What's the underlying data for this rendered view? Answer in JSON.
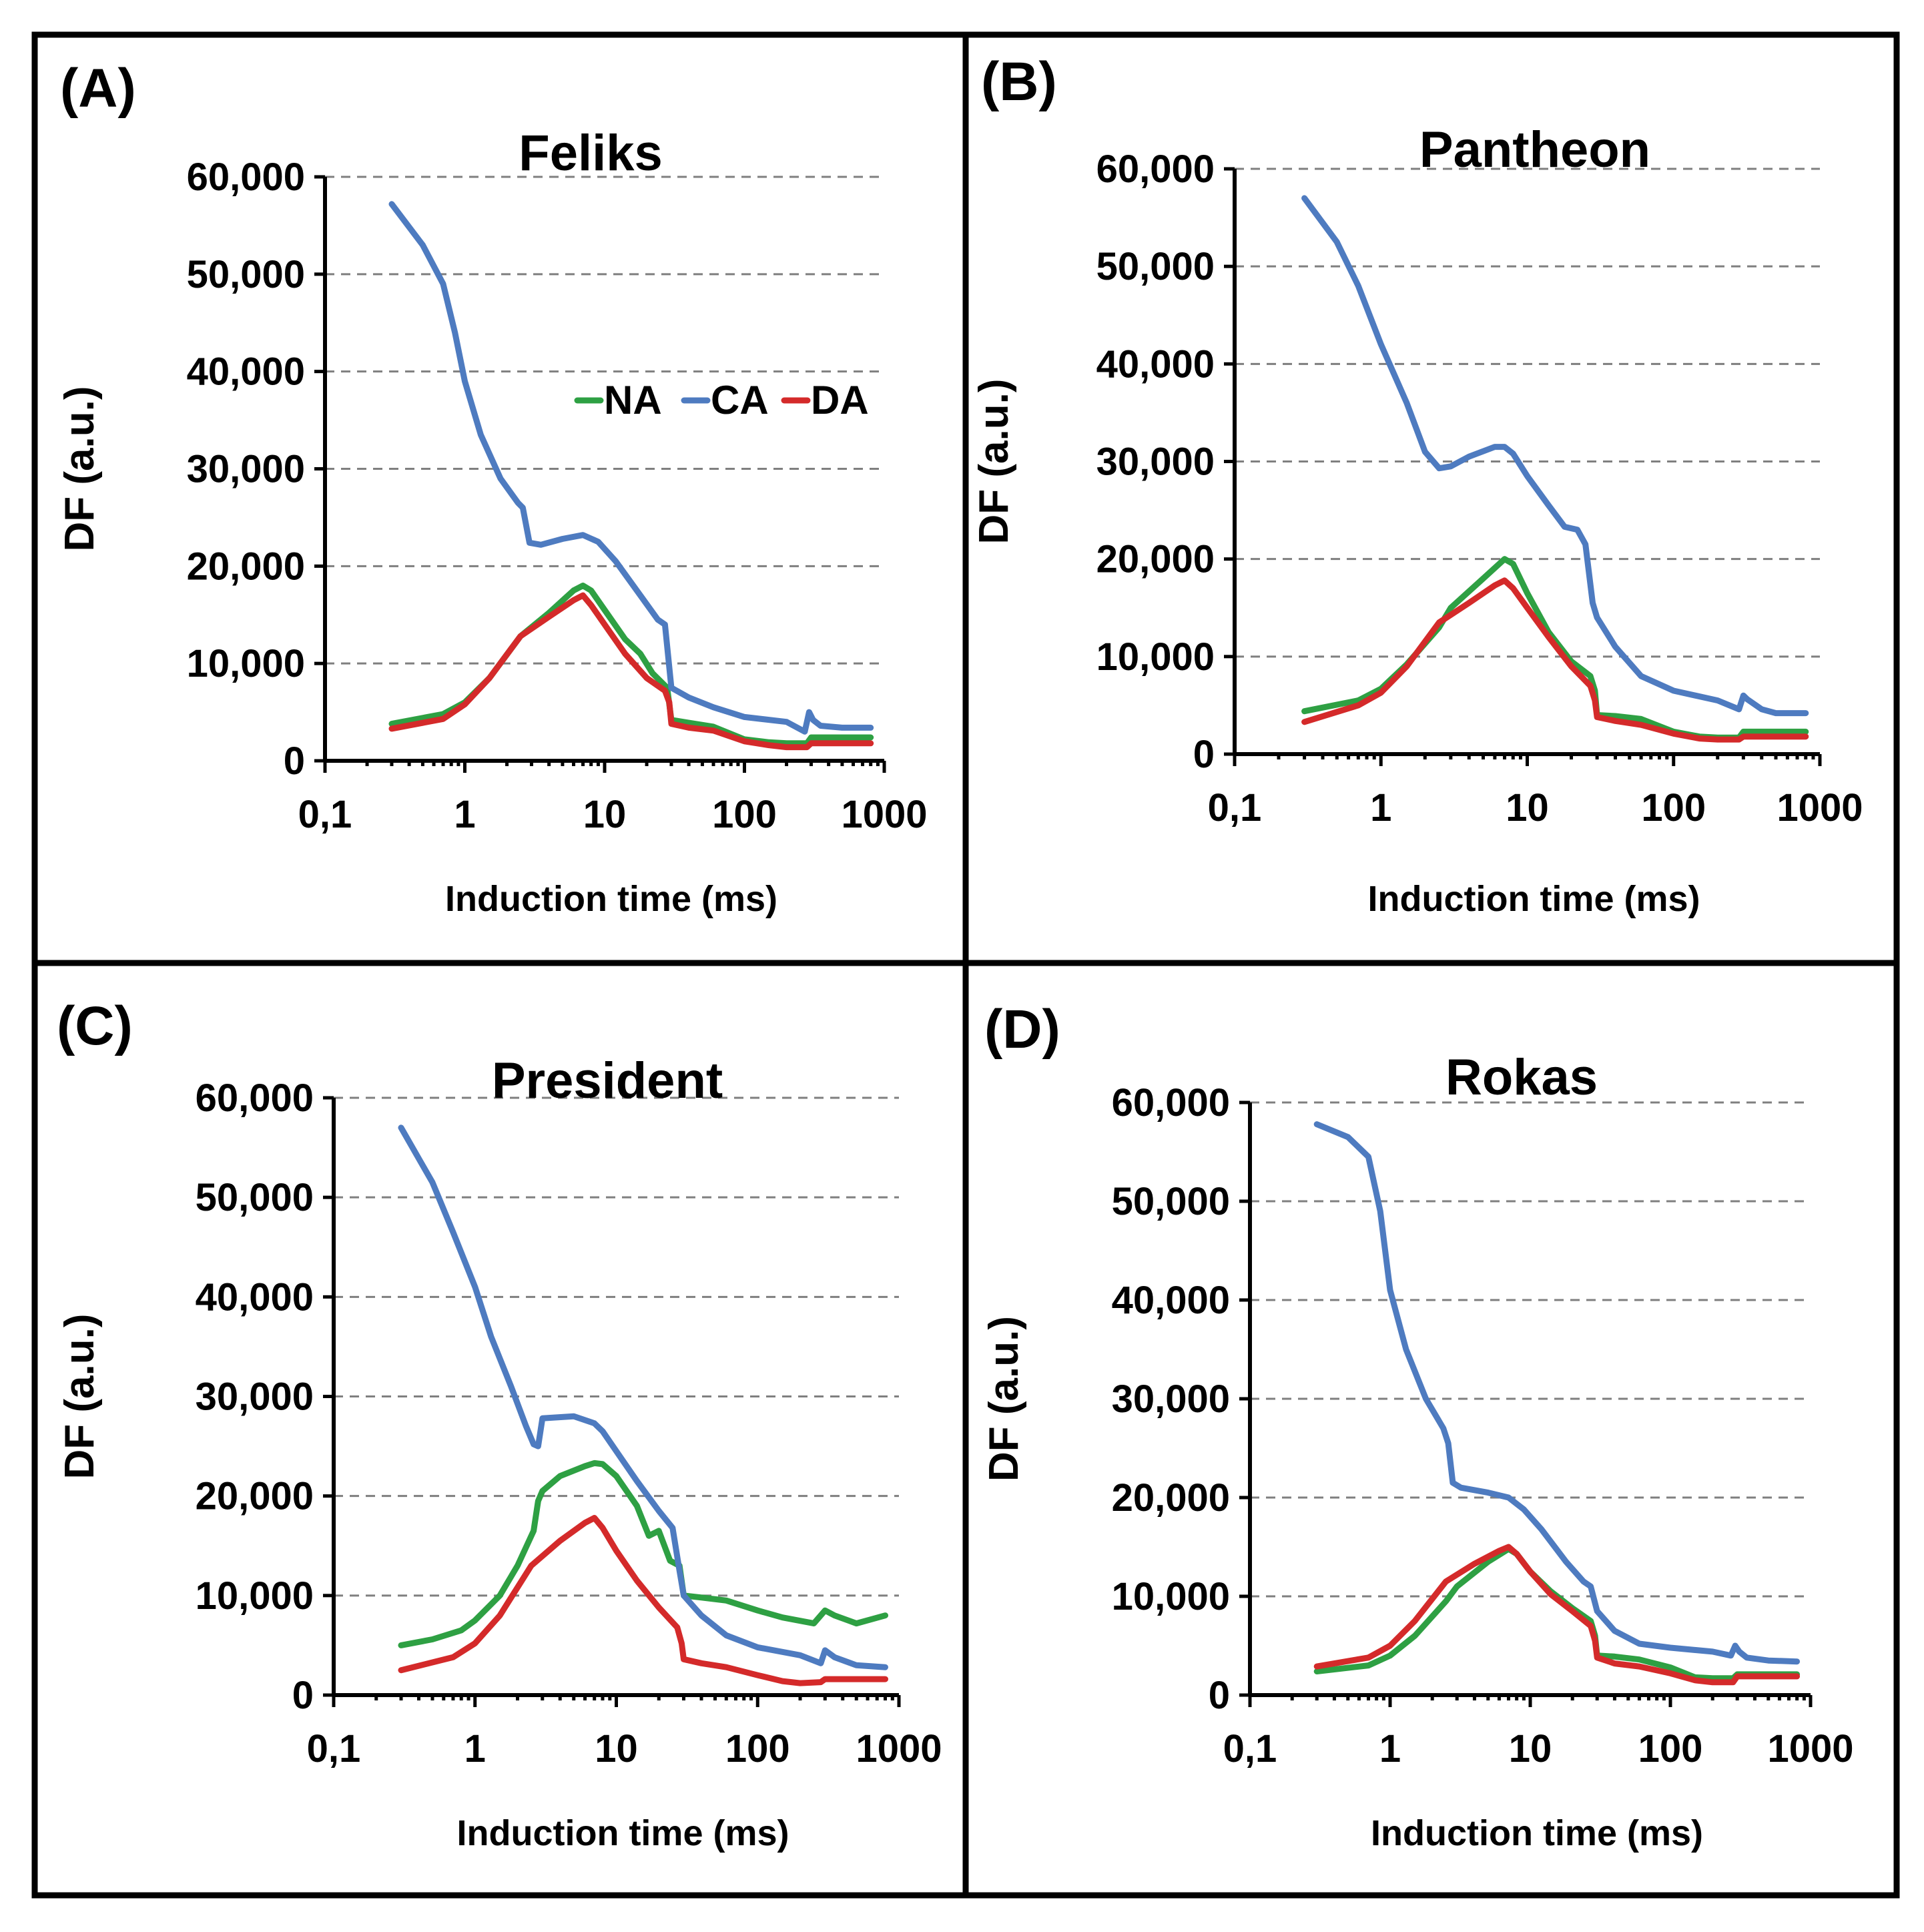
{
  "chart_data": [
    {
      "type": "line",
      "panel_label": "(A)",
      "title": "Feliks",
      "xlabel": "Induction time (ms)",
      "ylabel": "DF (a.u.)",
      "xscale": "log",
      "xlim": [
        0.1,
        1000
      ],
      "ylim": [
        0,
        60000
      ],
      "xticks": [
        "0,1",
        "1",
        "10",
        "100",
        "1000"
      ],
      "yticks": [
        "0",
        "10,000",
        "20,000",
        "30,000",
        "40,000",
        "50,000",
        "60,000"
      ],
      "grid": "horizontal dashed",
      "legend": {
        "position": "center-right",
        "entries": [
          "NA",
          "CA",
          "DA"
        ]
      },
      "series": [
        {
          "name": "NA",
          "color": "#2ea043",
          "x": [
            0.3,
            0.7,
            1,
            1.5,
            2.5,
            4,
            6,
            7,
            8,
            10,
            14,
            18,
            22,
            28,
            30,
            40,
            60,
            100,
            150,
            200,
            280,
            300,
            400,
            800
          ],
          "y": [
            3800,
            4800,
            6000,
            8500,
            12800,
            15200,
            17500,
            18000,
            17500,
            15500,
            12500,
            11000,
            9000,
            7500,
            4200,
            3900,
            3500,
            2200,
            1900,
            1800,
            1800,
            2400,
            2400,
            2400
          ]
        },
        {
          "name": "CA",
          "color": "#4e7bc0",
          "x": [
            0.3,
            0.5,
            0.7,
            0.85,
            1,
            1.3,
            1.8,
            2.4,
            2.6,
            2.9,
            3.5,
            5,
            7,
            9,
            12,
            18,
            24,
            27,
            30,
            40,
            60,
            100,
            200,
            270,
            290,
            310,
            350,
            500,
            800
          ],
          "y": [
            57200,
            53000,
            49000,
            44000,
            39000,
            33500,
            29000,
            26500,
            26000,
            22400,
            22200,
            22800,
            23200,
            22500,
            20500,
            17000,
            14500,
            14000,
            7500,
            6500,
            5500,
            4500,
            4000,
            3000,
            5000,
            4200,
            3600,
            3400,
            3400
          ]
        },
        {
          "name": "DA",
          "color": "#d42a2a",
          "x": [
            0.3,
            0.7,
            1,
            1.5,
            2.5,
            4,
            6,
            7,
            8,
            10,
            14,
            20,
            27,
            29,
            30,
            40,
            60,
            100,
            150,
            200,
            280,
            300,
            400,
            800
          ],
          "y": [
            3300,
            4300,
            5800,
            8500,
            12800,
            14800,
            16500,
            17000,
            16000,
            14000,
            11000,
            8500,
            7200,
            6000,
            3800,
            3400,
            3100,
            2000,
            1600,
            1400,
            1400,
            1800,
            1800,
            1800
          ]
        }
      ]
    },
    {
      "type": "line",
      "panel_label": "(B)",
      "title": "Pantheon",
      "xlabel": "Induction time (ms)",
      "ylabel": "DF (a.u.)",
      "xscale": "log",
      "xlim": [
        0.1,
        1000
      ],
      "ylim": [
        0,
        60000
      ],
      "xticks": [
        "0,1",
        "1",
        "10",
        "100",
        "1000"
      ],
      "yticks": [
        "0",
        "10,000",
        "20,000",
        "30,000",
        "40,000",
        "50,000",
        "60,000"
      ],
      "grid": "horizontal dashed",
      "series": [
        {
          "name": "NA",
          "color": "#2ea043",
          "x": [
            0.3,
            0.7,
            1,
            1.5,
            2.5,
            3,
            5,
            7,
            8,
            10,
            14,
            20,
            27,
            29,
            30,
            40,
            60,
            100,
            150,
            200,
            280,
            300,
            400,
            800
          ],
          "y": [
            4400,
            5500,
            6700,
            9200,
            13000,
            15000,
            18000,
            20000,
            19500,
            16500,
            12500,
            9500,
            8000,
            6500,
            4000,
            3900,
            3600,
            2300,
            1800,
            1700,
            1700,
            2300,
            2300,
            2300
          ]
        },
        {
          "name": "CA",
          "color": "#4e7bc0",
          "x": [
            0.3,
            0.5,
            0.7,
            1,
            1.5,
            2,
            2.5,
            3,
            4,
            6,
            7,
            8,
            10,
            14,
            18,
            22,
            25,
            28,
            30,
            40,
            60,
            100,
            200,
            280,
            300,
            320,
            400,
            500,
            800
          ],
          "y": [
            57000,
            52500,
            48000,
            42000,
            36000,
            31000,
            29300,
            29500,
            30500,
            31500,
            31500,
            30800,
            28500,
            25500,
            23300,
            23000,
            21500,
            15500,
            14000,
            11000,
            8000,
            6500,
            5500,
            4600,
            6000,
            5600,
            4600,
            4200,
            4200
          ]
        },
        {
          "name": "DA",
          "color": "#d42a2a",
          "x": [
            0.3,
            0.7,
            1,
            1.5,
            2.5,
            4,
            6,
            7,
            8,
            10,
            14,
            20,
            27,
            29,
            30,
            40,
            60,
            100,
            150,
            200,
            280,
            300,
            400,
            800
          ],
          "y": [
            3300,
            5000,
            6300,
            9000,
            13500,
            15500,
            17300,
            17800,
            17000,
            15000,
            12000,
            9000,
            7000,
            5500,
            3800,
            3400,
            3000,
            2100,
            1600,
            1500,
            1500,
            1800,
            1800,
            1800
          ]
        }
      ]
    },
    {
      "type": "line",
      "panel_label": "(C)",
      "title": "President",
      "xlabel": "Induction time (ms)",
      "ylabel": "DF (a.u.)",
      "xscale": "log",
      "xlim": [
        0.1,
        1000
      ],
      "ylim": [
        0,
        60000
      ],
      "xticks": [
        "0,1",
        "1",
        "10",
        "100",
        "1000"
      ],
      "yticks": [
        "0",
        "10,000",
        "20,000",
        "30,000",
        "40,000",
        "50,000",
        "60,000"
      ],
      "grid": "horizontal dashed",
      "series": [
        {
          "name": "NA",
          "color": "#2ea043",
          "x": [
            0.3,
            0.5,
            0.8,
            1,
            1.5,
            2,
            2.6,
            2.8,
            3,
            4,
            6,
            7,
            8,
            10,
            14,
            17,
            20,
            24,
            28,
            30,
            40,
            60,
            100,
            150,
            250,
            300,
            350,
            500,
            800
          ],
          "y": [
            5000,
            5600,
            6500,
            7500,
            10000,
            13000,
            16500,
            19500,
            20500,
            22000,
            23000,
            23300,
            23200,
            22000,
            19000,
            16000,
            16500,
            13500,
            13000,
            10000,
            9800,
            9500,
            8500,
            7800,
            7200,
            8500,
            8000,
            7200,
            8000
          ]
        },
        {
          "name": "CA",
          "color": "#4e7bc0",
          "x": [
            0.3,
            0.5,
            0.7,
            1,
            1.3,
            1.8,
            2.3,
            2.6,
            2.8,
            3,
            5,
            7,
            8,
            10,
            14,
            20,
            25,
            28,
            30,
            40,
            60,
            100,
            200,
            280,
            300,
            350,
            500,
            800
          ],
          "y": [
            57000,
            51500,
            46500,
            41000,
            36000,
            31000,
            27000,
            25200,
            25000,
            27800,
            28000,
            27300,
            26500,
            24500,
            21500,
            18500,
            16800,
            12500,
            10000,
            8000,
            6000,
            4800,
            4000,
            3200,
            4500,
            3800,
            3000,
            2800
          ]
        },
        {
          "name": "DA",
          "color": "#d42a2a",
          "x": [
            0.3,
            0.7,
            1,
            1.5,
            2.5,
            4,
            6,
            7,
            8,
            10,
            14,
            20,
            27,
            29,
            30,
            40,
            60,
            100,
            150,
            200,
            280,
            300,
            400,
            800
          ],
          "y": [
            2500,
            3800,
            5200,
            8000,
            13000,
            15500,
            17300,
            17800,
            16800,
            14500,
            11500,
            8800,
            6800,
            5200,
            3600,
            3200,
            2800,
            2000,
            1400,
            1200,
            1300,
            1600,
            1600,
            1600
          ]
        }
      ]
    },
    {
      "type": "line",
      "panel_label": "(D)",
      "title": "Rokas",
      "xlabel": "Induction time (ms)",
      "ylabel": "DF (a.u.)",
      "xscale": "log",
      "xlim": [
        0.1,
        1000
      ],
      "ylim": [
        0,
        60000
      ],
      "xticks": [
        "0,1",
        "1",
        "10",
        "100",
        "1000"
      ],
      "yticks": [
        "0",
        "10,000",
        "20,000",
        "30,000",
        "40,000",
        "50,000",
        "60,000"
      ],
      "grid": "horizontal dashed",
      "series": [
        {
          "name": "NA",
          "color": "#2ea043",
          "x": [
            0.3,
            0.7,
            1,
            1.5,
            2.5,
            3,
            5,
            7,
            8,
            10,
            14,
            20,
            27,
            29,
            30,
            40,
            60,
            100,
            150,
            200,
            280,
            300,
            400,
            800
          ],
          "y": [
            2400,
            3000,
            4000,
            6000,
            9500,
            11000,
            13500,
            14800,
            14300,
            12500,
            10500,
            8800,
            7500,
            6000,
            4000,
            3900,
            3600,
            2800,
            1800,
            1700,
            1700,
            2100,
            2100,
            2100
          ]
        },
        {
          "name": "CA",
          "color": "#4e7bc0",
          "x": [
            0.3,
            0.5,
            0.7,
            0.85,
            1,
            1.3,
            1.8,
            2.4,
            2.6,
            2.8,
            3.2,
            5,
            7,
            9,
            12,
            18,
            24,
            27,
            30,
            40,
            60,
            100,
            200,
            270,
            290,
            310,
            350,
            500,
            800
          ],
          "y": [
            57800,
            56500,
            54500,
            49000,
            41000,
            35000,
            30000,
            27000,
            25500,
            21500,
            21000,
            20500,
            20000,
            18800,
            16800,
            13500,
            11500,
            11000,
            8500,
            6500,
            5200,
            4800,
            4400,
            4000,
            5000,
            4400,
            3800,
            3500,
            3400
          ]
        },
        {
          "name": "DA",
          "color": "#d42a2a",
          "x": [
            0.3,
            0.7,
            1,
            1.5,
            2.5,
            4,
            6,
            7,
            8,
            10,
            14,
            20,
            27,
            29,
            30,
            40,
            60,
            100,
            150,
            200,
            280,
            300,
            400,
            800
          ],
          "y": [
            2900,
            3800,
            5000,
            7500,
            11500,
            13300,
            14600,
            15000,
            14300,
            12500,
            10200,
            8500,
            7000,
            5500,
            3800,
            3200,
            2900,
            2200,
            1500,
            1300,
            1300,
            1900,
            1900,
            1900
          ]
        }
      ]
    }
  ]
}
